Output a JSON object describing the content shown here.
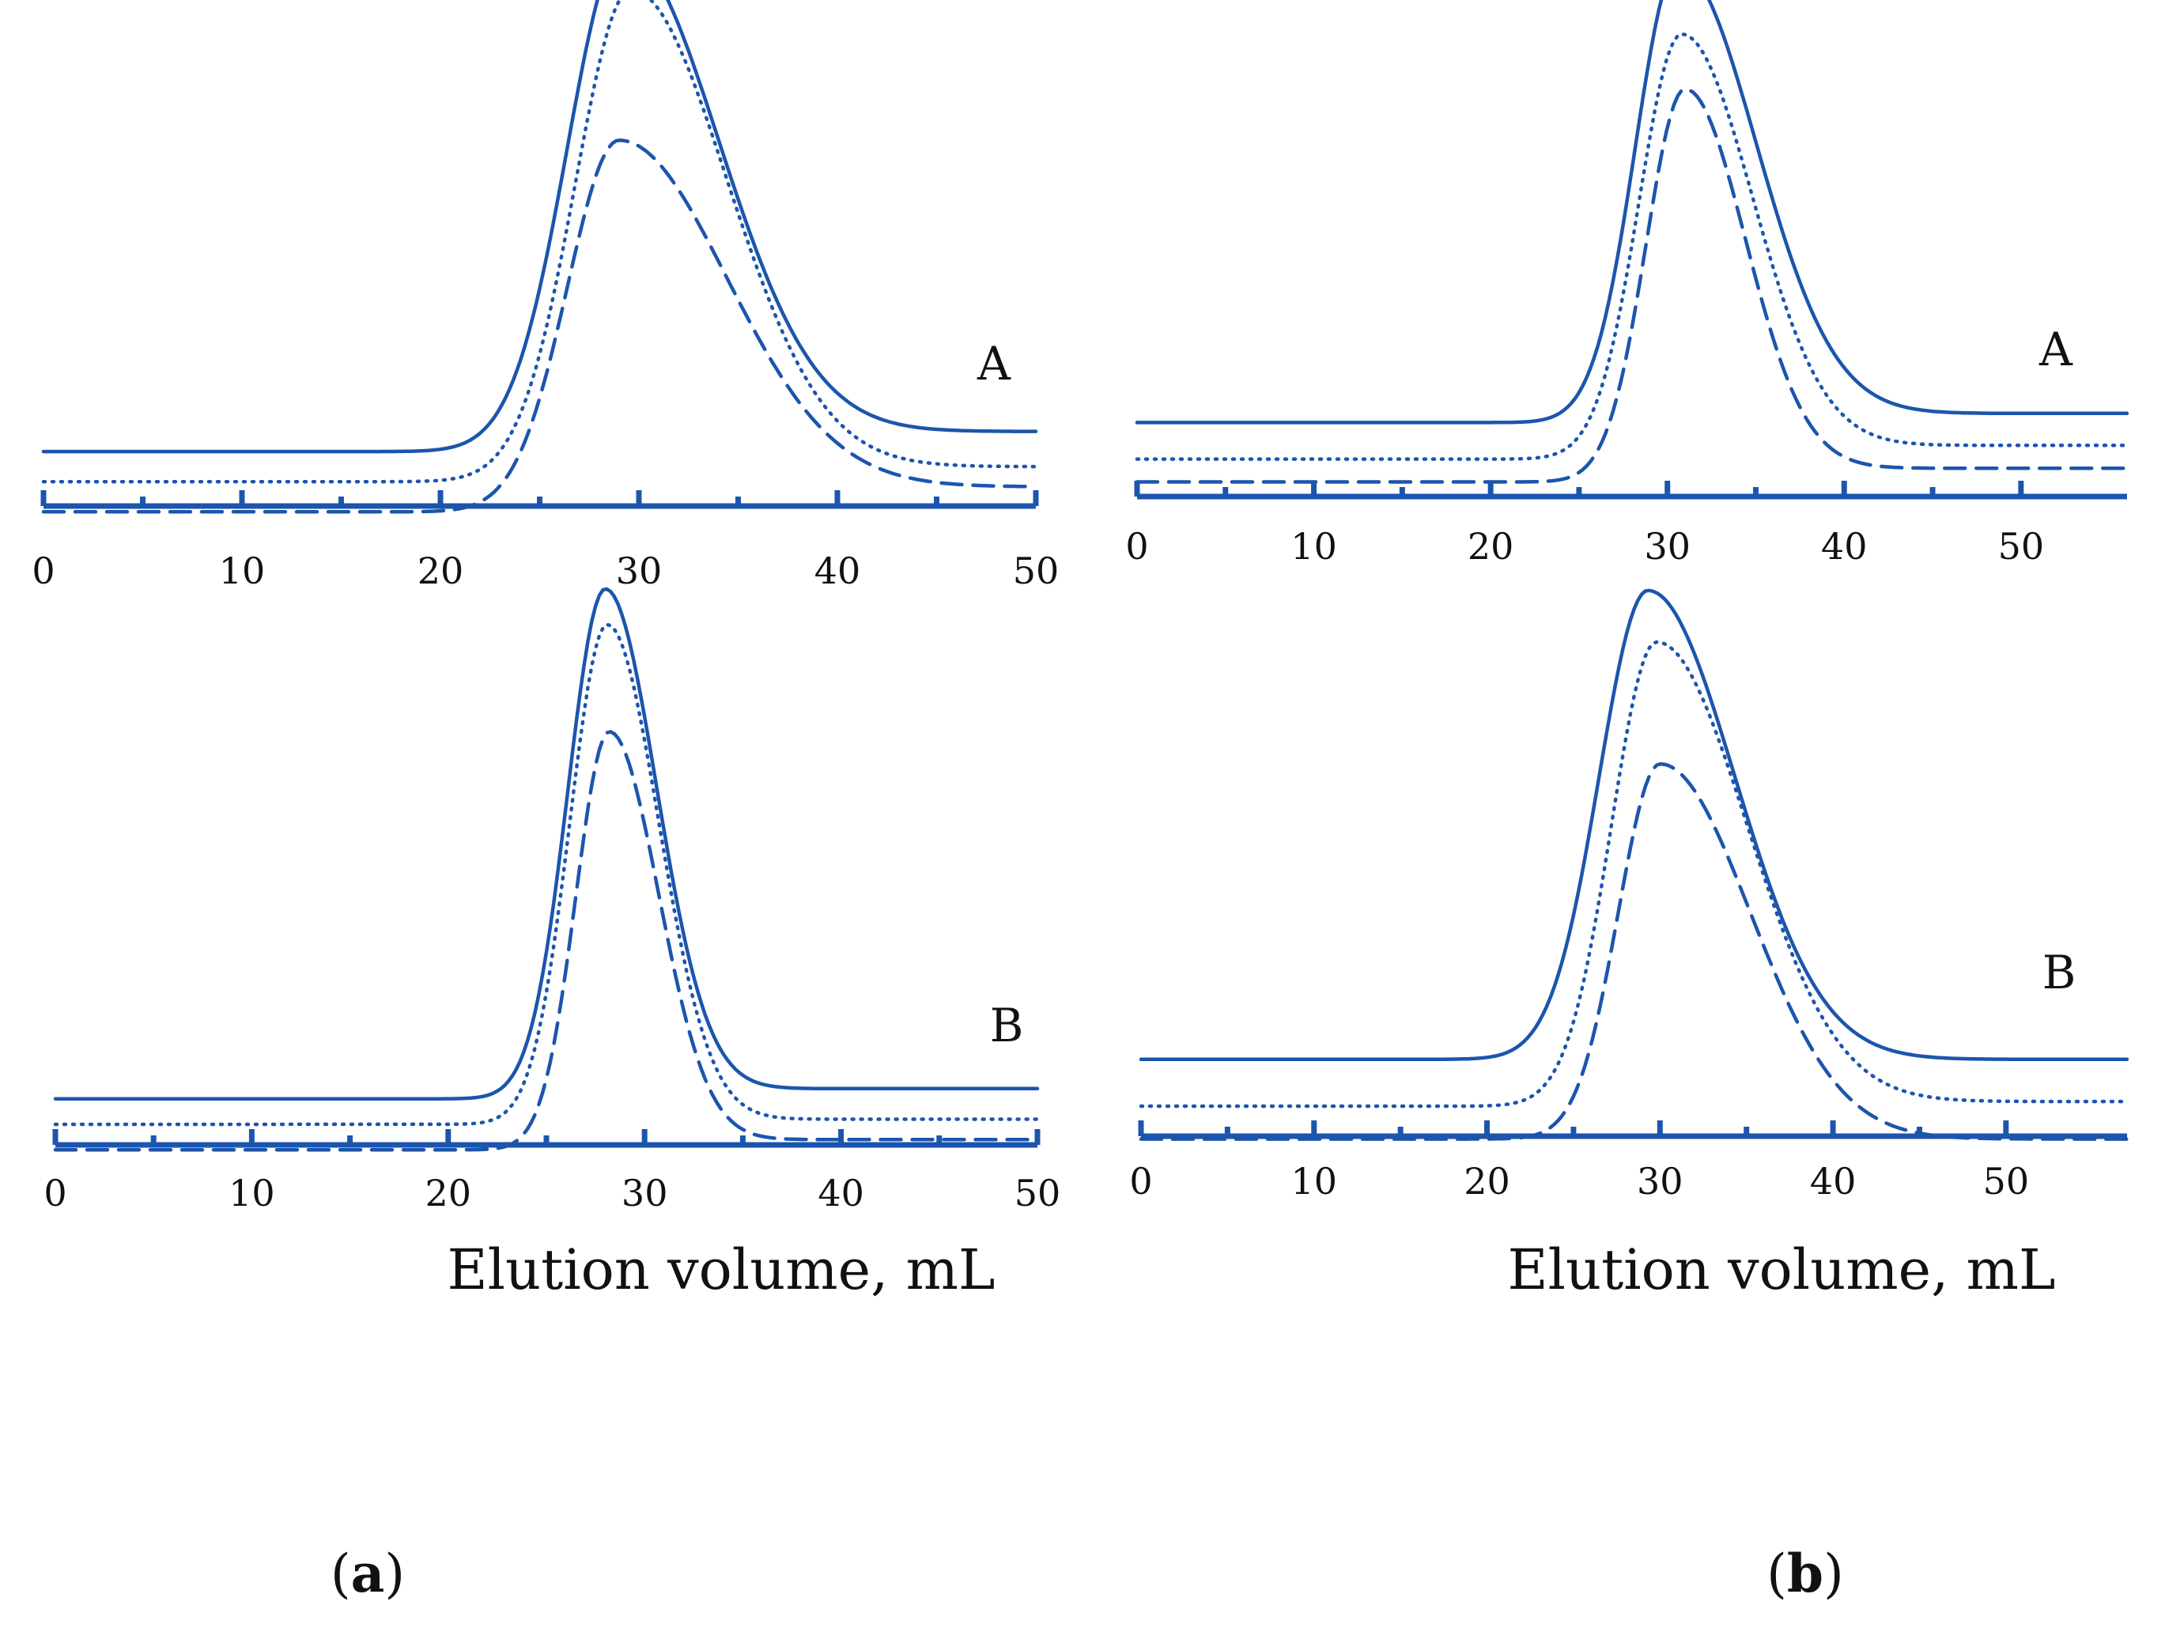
{
  "figure": {
    "subfigure_labels": [
      {
        "open": "(",
        "letter": "a",
        "close": ")"
      },
      {
        "open": "(",
        "letter": "b",
        "close": ")"
      }
    ],
    "color": "#1c55ad"
  },
  "chart_data": [
    {
      "id": "a-A",
      "type": "line",
      "panel_label": "A",
      "xlabel": "",
      "ylabel": "",
      "xlim": [
        0,
        50
      ],
      "x_ticks": [
        0,
        10,
        20,
        30,
        40,
        50
      ],
      "x_minor_ticks": [
        5,
        15,
        25,
        35,
        45
      ],
      "y_ticks": [],
      "series": [
        {
          "name": "solid",
          "style": "solid",
          "baseline": 0.14,
          "peak_x": 29.2,
          "peak_height": 1.0,
          "rise_width": 2.8,
          "tail_width": 4.8,
          "end_level": 0.18
        },
        {
          "name": "dotted",
          "style": "dotted",
          "baseline": 0.08,
          "peak_x": 29.6,
          "peak_height": 0.98,
          "rise_width": 2.8,
          "tail_width": 4.8,
          "end_level": 0.11
        },
        {
          "name": "dashed",
          "style": "dashed",
          "baseline": 0.02,
          "peak_x": 29.0,
          "peak_height": 0.74,
          "rise_width": 2.6,
          "tail_width": 5.4,
          "end_level": 0.07
        }
      ]
    },
    {
      "id": "b-A",
      "type": "line",
      "panel_label": "A",
      "xlabel": "",
      "ylabel": "",
      "xlim": [
        0,
        56
      ],
      "x_ticks": [
        0,
        10,
        20,
        30,
        40,
        50
      ],
      "x_minor_ticks": [
        5,
        15,
        25,
        35,
        45
      ],
      "y_ticks": [],
      "series": [
        {
          "name": "solid",
          "style": "solid",
          "baseline": 0.2,
          "peak_x": 30.6,
          "peak_height": 1.0,
          "rise_width": 2.4,
          "tail_width": 4.4,
          "end_level": 0.22
        },
        {
          "name": "dotted",
          "style": "dotted",
          "baseline": 0.12,
          "peak_x": 30.8,
          "peak_height": 0.93,
          "rise_width": 2.4,
          "tail_width": 4.0,
          "end_level": 0.15
        },
        {
          "name": "dashed",
          "style": "dashed",
          "baseline": 0.07,
          "peak_x": 31.0,
          "peak_height": 0.86,
          "rise_width": 2.2,
          "tail_width": 3.4,
          "end_level": 0.1
        }
      ]
    },
    {
      "id": "a-B",
      "type": "line",
      "panel_label": "B",
      "xlabel": "Elution volume, mL",
      "ylabel": "",
      "xlim": [
        0,
        50
      ],
      "x_ticks": [
        0,
        10,
        20,
        30,
        40,
        50
      ],
      "x_minor_ticks": [
        5,
        15,
        25,
        35,
        45
      ],
      "y_ticks": [],
      "series": [
        {
          "name": "solid",
          "style": "solid",
          "baseline": 0.14,
          "peak_x": 28.0,
          "peak_height": 1.0,
          "rise_width": 1.9,
          "tail_width": 2.6,
          "end_level": 0.16
        },
        {
          "name": "dotted",
          "style": "dotted",
          "baseline": 0.09,
          "peak_x": 28.1,
          "peak_height": 0.98,
          "rise_width": 1.9,
          "tail_width": 2.6,
          "end_level": 0.1
        },
        {
          "name": "dashed",
          "style": "dashed",
          "baseline": 0.04,
          "peak_x": 28.2,
          "peak_height": 0.82,
          "rise_width": 1.7,
          "tail_width": 2.5,
          "end_level": 0.06
        }
      ]
    },
    {
      "id": "b-B",
      "type": "line",
      "panel_label": "B",
      "xlabel": "Elution volume, mL",
      "ylabel": "",
      "xlim": [
        0,
        57
      ],
      "x_ticks": [
        0,
        10,
        20,
        30,
        40,
        50
      ],
      "x_minor_ticks": [
        5,
        15,
        25,
        35,
        45
      ],
      "y_ticks": [],
      "series": [
        {
          "name": "solid",
          "style": "solid",
          "baseline": 0.25,
          "peak_x": 29.3,
          "peak_height": 1.0,
          "rise_width": 2.8,
          "tail_width": 5.0,
          "end_level": 0.25
        },
        {
          "name": "dotted",
          "style": "dotted",
          "baseline": 0.15,
          "peak_x": 29.8,
          "peak_height": 0.99,
          "rise_width": 2.6,
          "tail_width": 5.2,
          "end_level": 0.16
        },
        {
          "name": "dashed",
          "style": "dashed",
          "baseline": 0.08,
          "peak_x": 30.0,
          "peak_height": 0.8,
          "rise_width": 2.4,
          "tail_width": 5.2,
          "end_level": 0.08
        }
      ]
    }
  ]
}
